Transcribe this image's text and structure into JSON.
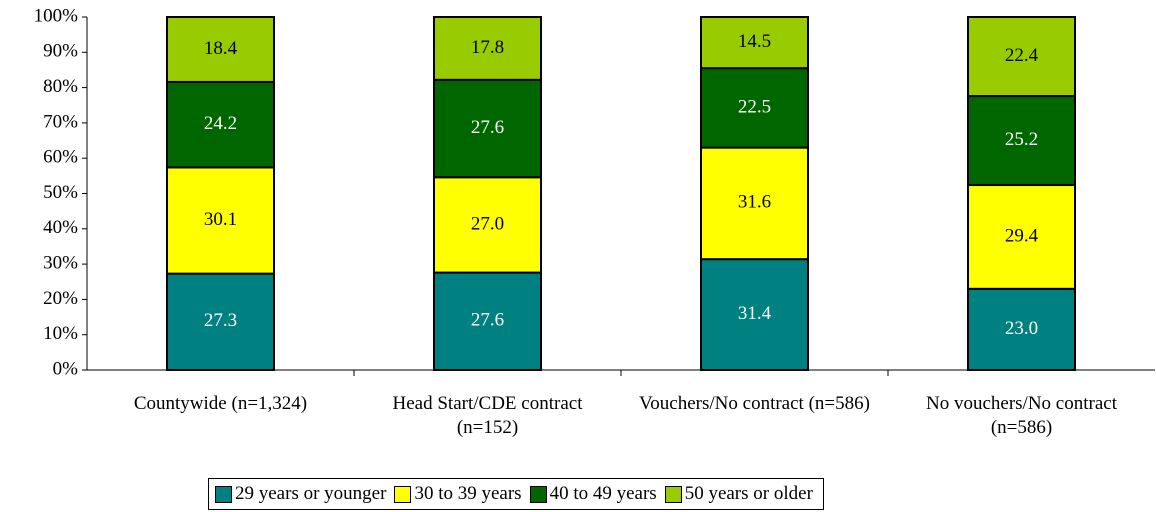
{
  "chart_data": {
    "type": "stacked_bar",
    "categories": [
      "Countywide (n=1,324)",
      "Head Start/CDE contract (n=152)",
      "Vouchers/No contract (n=586)",
      "No vouchers/No contract (n=586)"
    ],
    "series": [
      {
        "name": "29 years or younger",
        "color": "#008080",
        "values": [
          27.3,
          27.6,
          31.4,
          23.0
        ],
        "value_labels": [
          "27.3",
          "27.6",
          "31.4",
          "23.0"
        ]
      },
      {
        "name": "30 to 39 years",
        "color": "#ffff00",
        "values": [
          30.1,
          27.0,
          31.6,
          29.4
        ],
        "value_labels": [
          "30.1",
          "27.0",
          "31.6",
          "29.4"
        ]
      },
      {
        "name": "40 to 49 years",
        "color": "#006600",
        "values": [
          24.2,
          27.6,
          22.5,
          25.2
        ],
        "value_labels": [
          "24.2",
          "27.6",
          "22.5",
          "25.2"
        ]
      },
      {
        "name": "50 years or older",
        "color": "#99cc00",
        "values": [
          18.4,
          17.8,
          14.5,
          22.4
        ],
        "value_labels": [
          "18.4",
          "17.8",
          "14.5",
          "22.4"
        ]
      }
    ],
    "ylim": [
      0,
      100
    ],
    "yticks": [
      {
        "value": 0,
        "label": "0%"
      },
      {
        "value": 10,
        "label": "10%"
      },
      {
        "value": 20,
        "label": "20%"
      },
      {
        "value": 30,
        "label": "30%"
      },
      {
        "value": 40,
        "label": "40%"
      },
      {
        "value": 50,
        "label": "50%"
      },
      {
        "value": 60,
        "label": "60%"
      },
      {
        "value": 70,
        "label": "70%"
      },
      {
        "value": 80,
        "label": "80%"
      },
      {
        "value": 90,
        "label": "90%"
      },
      {
        "value": 100,
        "label": "100%"
      }
    ],
    "legend": "bottom"
  }
}
